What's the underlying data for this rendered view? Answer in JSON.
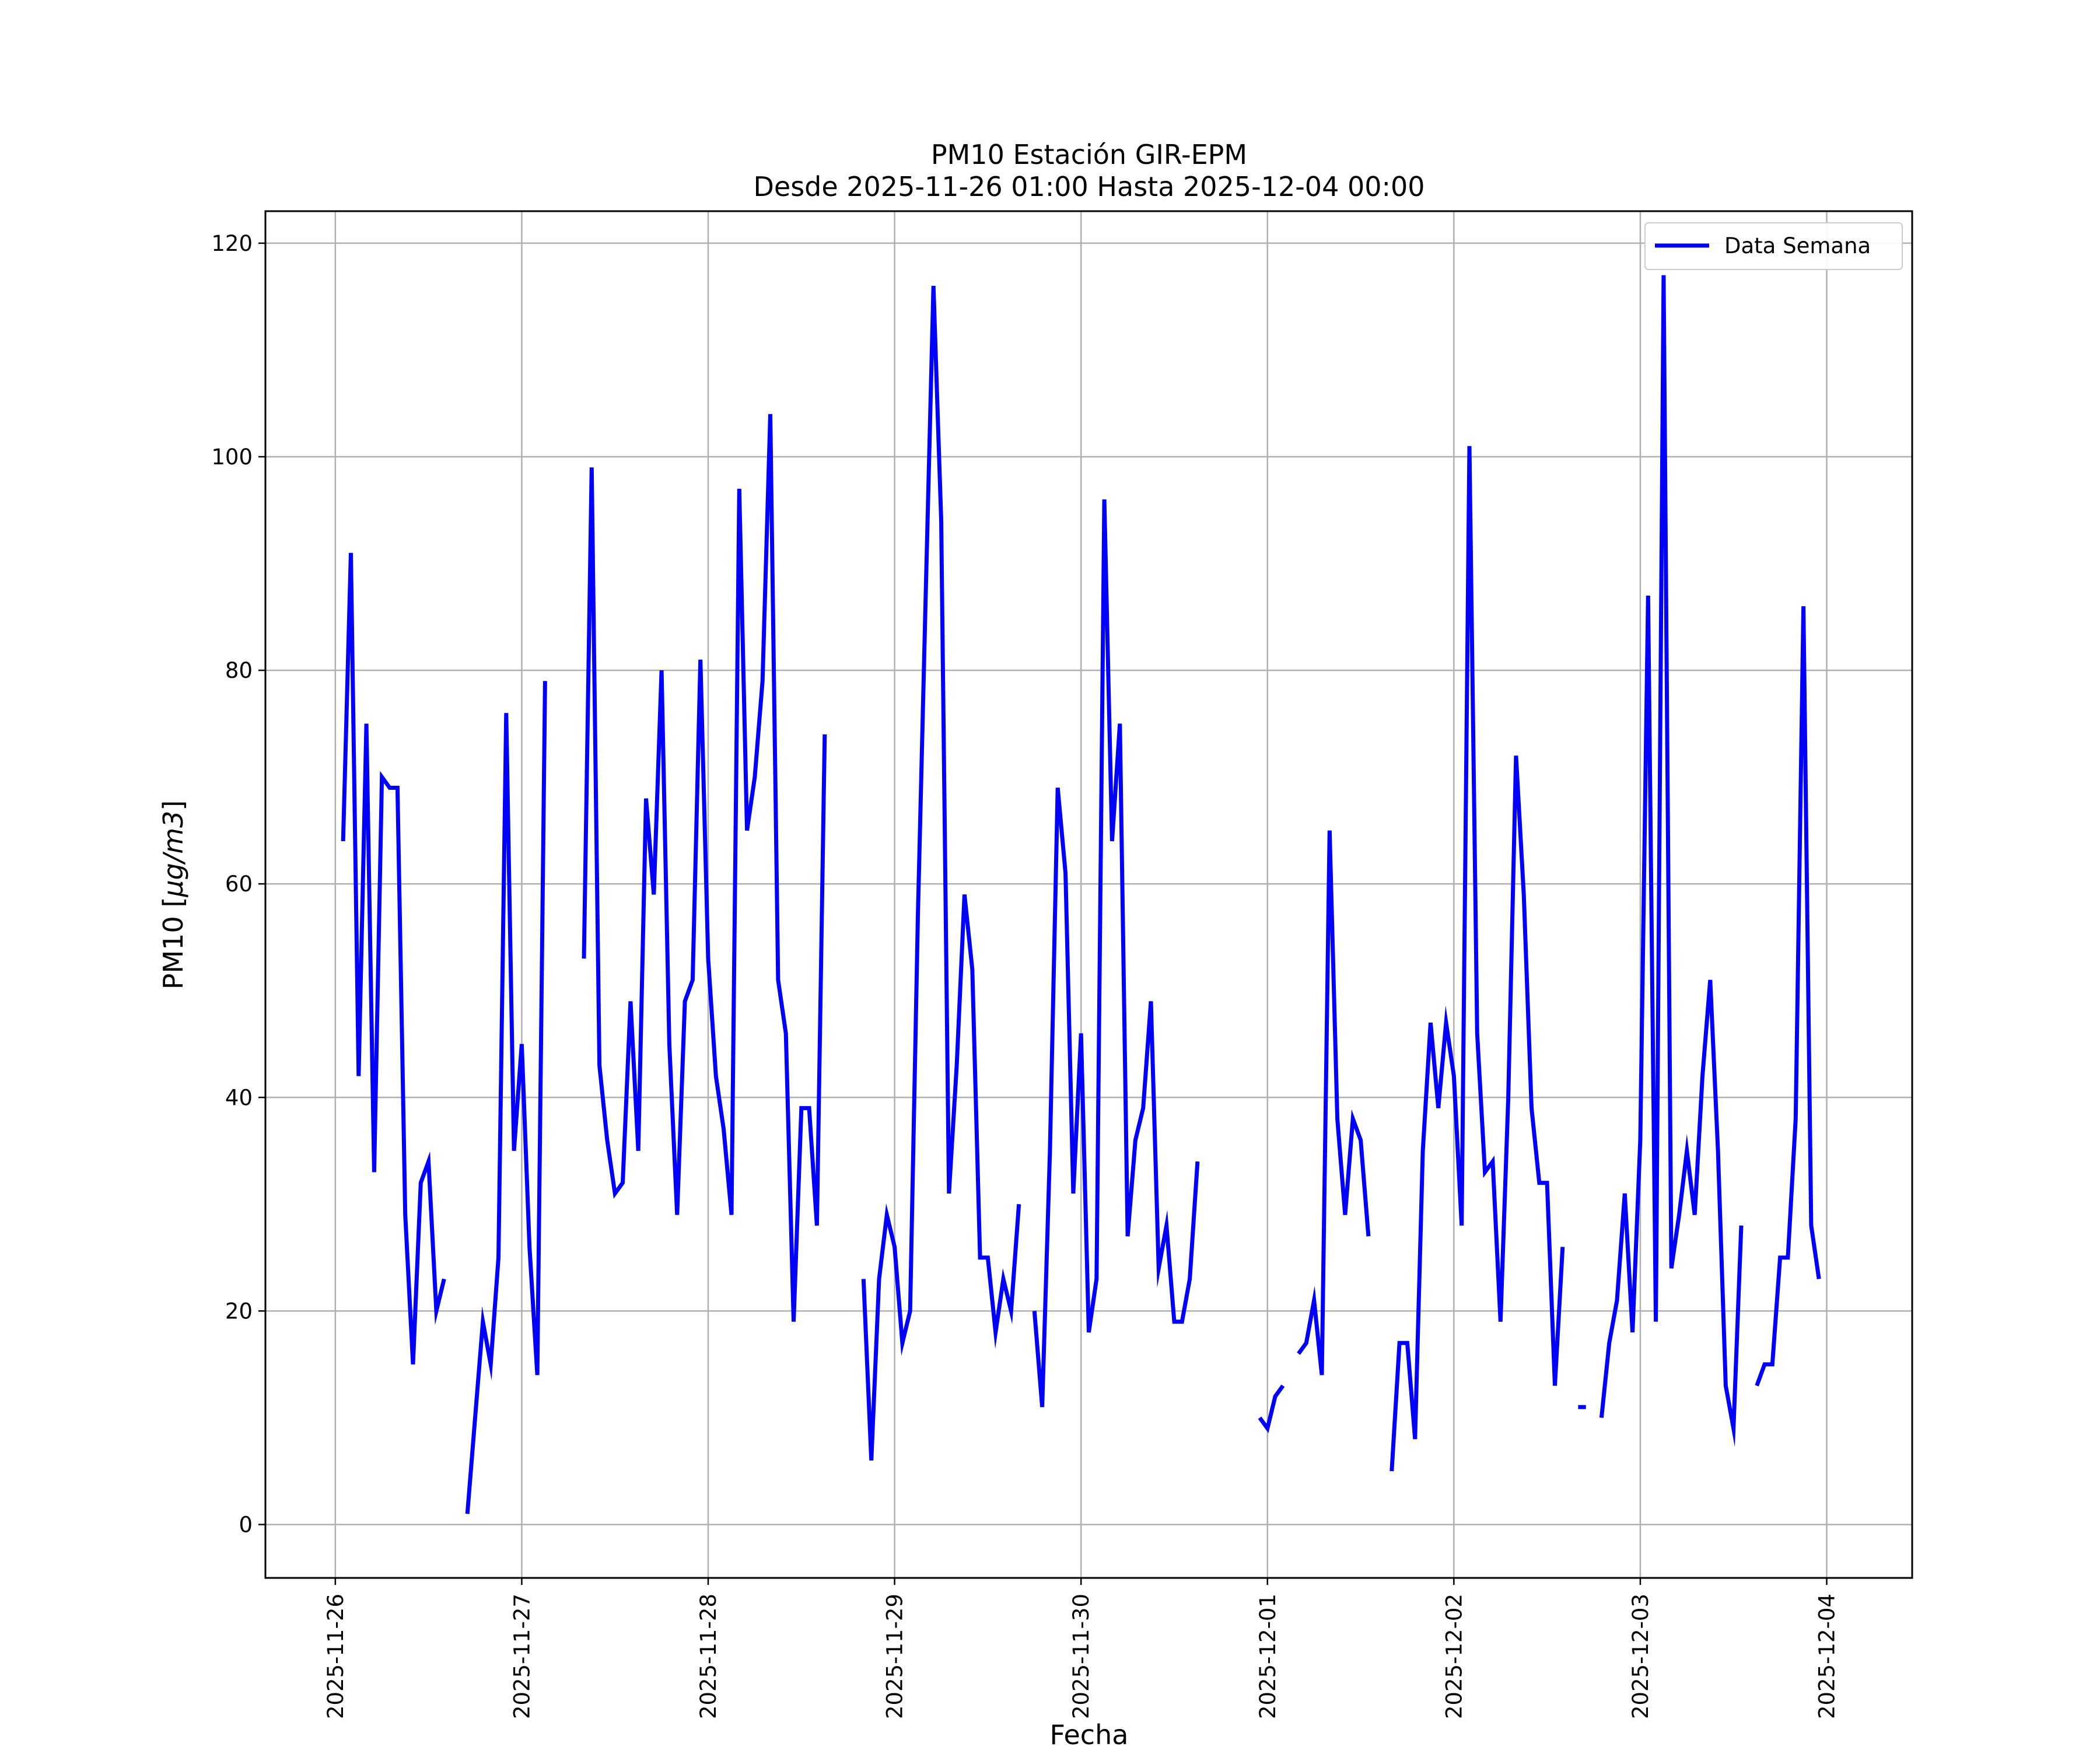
{
  "chart_data": {
    "type": "line",
    "title": "PM10 Estación GIR-EPM",
    "subtitle": "Desde 2025-11-26 01:00 Hasta 2025-12-04 00:00",
    "xlabel": "Fecha",
    "ylabel_prefix": "PM10 [",
    "ylabel_unit": "μg/m3",
    "ylabel_suffix": "]",
    "xlim": [
      "2025-11-25T15:00",
      "2025-12-04T11:00"
    ],
    "ylim": [
      -5,
      123
    ],
    "xticks": [
      "2025-11-26",
      "2025-11-27",
      "2025-11-28",
      "2025-11-29",
      "2025-11-30",
      "2025-12-01",
      "2025-12-02",
      "2025-12-03",
      "2025-12-04"
    ],
    "yticks": [
      0,
      20,
      40,
      60,
      80,
      100,
      120
    ],
    "grid": true,
    "legend_position": "top-right",
    "series": [
      {
        "name": "Data Semana",
        "color": "#0000ff",
        "segments": [
          [
            [
              "2025-11-26T01:00",
              64
            ],
            [
              "2025-11-26T02:00",
              91
            ],
            [
              "2025-11-26T03:00",
              42
            ],
            [
              "2025-11-26T04:00",
              75
            ],
            [
              "2025-11-26T05:00",
              33
            ],
            [
              "2025-11-26T06:00",
              70
            ],
            [
              "2025-11-26T07:00",
              69
            ],
            [
              "2025-11-26T08:00",
              69
            ],
            [
              "2025-11-26T09:00",
              29
            ],
            [
              "2025-11-26T10:00",
              15
            ],
            [
              "2025-11-26T11:00",
              32
            ],
            [
              "2025-11-26T12:00",
              34
            ],
            [
              "2025-11-26T13:00",
              20
            ],
            [
              "2025-11-26T14:00",
              23
            ]
          ],
          [
            [
              "2025-11-26T17:00",
              1
            ],
            [
              "2025-11-26T18:00",
              10
            ],
            [
              "2025-11-26T19:00",
              19
            ],
            [
              "2025-11-26T20:00",
              15
            ],
            [
              "2025-11-26T21:00",
              25
            ],
            [
              "2025-11-26T22:00",
              76
            ],
            [
              "2025-11-26T23:00",
              35
            ],
            [
              "2025-11-27T00:00",
              45
            ],
            [
              "2025-11-27T01:00",
              26
            ],
            [
              "2025-11-27T02:00",
              14
            ],
            [
              "2025-11-27T03:00",
              79
            ]
          ],
          [
            [
              "2025-11-27T08:00",
              53
            ],
            [
              "2025-11-27T09:00",
              99
            ],
            [
              "2025-11-27T10:00",
              43
            ],
            [
              "2025-11-27T11:00",
              36
            ],
            [
              "2025-11-27T12:00",
              31
            ],
            [
              "2025-11-27T13:00",
              32
            ],
            [
              "2025-11-27T14:00",
              49
            ],
            [
              "2025-11-27T15:00",
              35
            ],
            [
              "2025-11-27T16:00",
              68
            ],
            [
              "2025-11-27T17:00",
              59
            ],
            [
              "2025-11-27T18:00",
              80
            ],
            [
              "2025-11-27T19:00",
              45
            ],
            [
              "2025-11-27T20:00",
              29
            ],
            [
              "2025-11-27T21:00",
              49
            ],
            [
              "2025-11-27T22:00",
              51
            ],
            [
              "2025-11-27T23:00",
              81
            ],
            [
              "2025-11-28T00:00",
              53
            ],
            [
              "2025-11-28T01:00",
              42
            ],
            [
              "2025-11-28T02:00",
              37
            ],
            [
              "2025-11-28T03:00",
              29
            ],
            [
              "2025-11-28T04:00",
              97
            ],
            [
              "2025-11-28T05:00",
              65
            ],
            [
              "2025-11-28T06:00",
              70
            ],
            [
              "2025-11-28T07:00",
              79
            ],
            [
              "2025-11-28T08:00",
              104
            ],
            [
              "2025-11-28T09:00",
              51
            ],
            [
              "2025-11-28T10:00",
              46
            ],
            [
              "2025-11-28T11:00",
              19
            ],
            [
              "2025-11-28T12:00",
              39
            ],
            [
              "2025-11-28T13:00",
              39
            ],
            [
              "2025-11-28T14:00",
              28
            ],
            [
              "2025-11-28T15:00",
              74
            ]
          ],
          [
            [
              "2025-11-28T20:00",
              23
            ],
            [
              "2025-11-28T21:00",
              6
            ],
            [
              "2025-11-28T22:00",
              23
            ],
            [
              "2025-11-28T23:00",
              29
            ],
            [
              "2025-11-29T00:00",
              26
            ],
            [
              "2025-11-29T01:00",
              17
            ],
            [
              "2025-11-29T02:00",
              20
            ],
            [
              "2025-11-29T03:00",
              57
            ],
            [
              "2025-11-29T04:00",
              87
            ],
            [
              "2025-11-29T05:00",
              116
            ],
            [
              "2025-11-29T06:00",
              94
            ],
            [
              "2025-11-29T07:00",
              31
            ],
            [
              "2025-11-29T08:00",
              43
            ],
            [
              "2025-11-29T09:00",
              59
            ],
            [
              "2025-11-29T10:00",
              52
            ],
            [
              "2025-11-29T11:00",
              25
            ],
            [
              "2025-11-29T12:00",
              25
            ],
            [
              "2025-11-29T13:00",
              18
            ],
            [
              "2025-11-29T14:00",
              23
            ],
            [
              "2025-11-29T15:00",
              20
            ],
            [
              "2025-11-29T16:00",
              30
            ]
          ],
          [
            [
              "2025-11-29T18:00",
              20
            ],
            [
              "2025-11-29T19:00",
              11
            ],
            [
              "2025-11-29T20:00",
              35
            ],
            [
              "2025-11-29T21:00",
              69
            ],
            [
              "2025-11-29T22:00",
              61
            ],
            [
              "2025-11-29T23:00",
              31
            ],
            [
              "2025-11-30T00:00",
              46
            ],
            [
              "2025-11-30T01:00",
              18
            ],
            [
              "2025-11-30T02:00",
              23
            ],
            [
              "2025-11-30T03:00",
              96
            ],
            [
              "2025-11-30T04:00",
              64
            ],
            [
              "2025-11-30T05:00",
              75
            ],
            [
              "2025-11-30T06:00",
              27
            ],
            [
              "2025-11-30T07:00",
              36
            ],
            [
              "2025-11-30T08:00",
              39
            ],
            [
              "2025-11-30T09:00",
              49
            ],
            [
              "2025-11-30T10:00",
              24
            ],
            [
              "2025-11-30T11:00",
              28
            ],
            [
              "2025-11-30T12:00",
              19
            ],
            [
              "2025-11-30T13:00",
              19
            ],
            [
              "2025-11-30T14:00",
              23
            ],
            [
              "2025-11-30T15:00",
              34
            ]
          ],
          [
            [
              "2025-11-30T23:00",
              10
            ],
            [
              "2025-12-01T00:00",
              9
            ],
            [
              "2025-12-01T01:00",
              12
            ],
            [
              "2025-12-01T02:00",
              13
            ]
          ],
          [
            [
              "2025-12-01T04:00",
              16
            ],
            [
              "2025-12-01T05:00",
              17
            ],
            [
              "2025-12-01T06:00",
              21
            ],
            [
              "2025-12-01T07:00",
              14
            ],
            [
              "2025-12-01T08:00",
              65
            ],
            [
              "2025-12-01T09:00",
              38
            ],
            [
              "2025-12-01T10:00",
              29
            ],
            [
              "2025-12-01T11:00",
              38
            ],
            [
              "2025-12-01T12:00",
              36
            ],
            [
              "2025-12-01T13:00",
              27
            ]
          ],
          [
            [
              "2025-12-01T16:00",
              5
            ],
            [
              "2025-12-01T17:00",
              17
            ],
            [
              "2025-12-01T18:00",
              17
            ],
            [
              "2025-12-01T19:00",
              8
            ],
            [
              "2025-12-01T20:00",
              35
            ],
            [
              "2025-12-01T21:00",
              47
            ],
            [
              "2025-12-01T22:00",
              39
            ],
            [
              "2025-12-01T23:00",
              47
            ],
            [
              "2025-12-02T00:00",
              42
            ],
            [
              "2025-12-02T01:00",
              28
            ],
            [
              "2025-12-02T02:00",
              101
            ],
            [
              "2025-12-02T03:00",
              46
            ],
            [
              "2025-12-02T04:00",
              33
            ],
            [
              "2025-12-02T05:00",
              34
            ],
            [
              "2025-12-02T06:00",
              19
            ],
            [
              "2025-12-02T07:00",
              40
            ],
            [
              "2025-12-02T08:00",
              72
            ],
            [
              "2025-12-02T09:00",
              59
            ],
            [
              "2025-12-02T10:00",
              39
            ],
            [
              "2025-12-02T11:00",
              32
            ],
            [
              "2025-12-02T12:00",
              32
            ],
            [
              "2025-12-02T13:00",
              13
            ],
            [
              "2025-12-02T14:00",
              26
            ]
          ],
          [
            [
              "2025-12-02T16:00",
              11
            ],
            [
              "2025-12-02T17:00",
              11
            ]
          ],
          [
            [
              "2025-12-02T19:00",
              10
            ],
            [
              "2025-12-02T20:00",
              17
            ],
            [
              "2025-12-02T21:00",
              21
            ],
            [
              "2025-12-02T22:00",
              31
            ],
            [
              "2025-12-02T23:00",
              18
            ],
            [
              "2025-12-03T00:00",
              36
            ],
            [
              "2025-12-03T01:00",
              87
            ],
            [
              "2025-12-03T02:00",
              19
            ],
            [
              "2025-12-03T03:00",
              117
            ],
            [
              "2025-12-03T04:00",
              24
            ],
            [
              "2025-12-03T05:00",
              29
            ],
            [
              "2025-12-03T06:00",
              35
            ],
            [
              "2025-12-03T07:00",
              29
            ],
            [
              "2025-12-03T08:00",
              42
            ],
            [
              "2025-12-03T09:00",
              51
            ],
            [
              "2025-12-03T10:00",
              35
            ],
            [
              "2025-12-03T11:00",
              13
            ],
            [
              "2025-12-03T12:00",
              9
            ],
            [
              "2025-12-03T13:00",
              28
            ]
          ],
          [
            [
              "2025-12-03T15:00",
              13
            ],
            [
              "2025-12-03T16:00",
              15
            ],
            [
              "2025-12-03T17:00",
              15
            ],
            [
              "2025-12-03T18:00",
              25
            ],
            [
              "2025-12-03T19:00",
              25
            ],
            [
              "2025-12-03T20:00",
              38
            ],
            [
              "2025-12-03T21:00",
              86
            ],
            [
              "2025-12-03T22:00",
              28
            ],
            [
              "2025-12-03T23:00",
              23
            ]
          ]
        ]
      }
    ]
  }
}
